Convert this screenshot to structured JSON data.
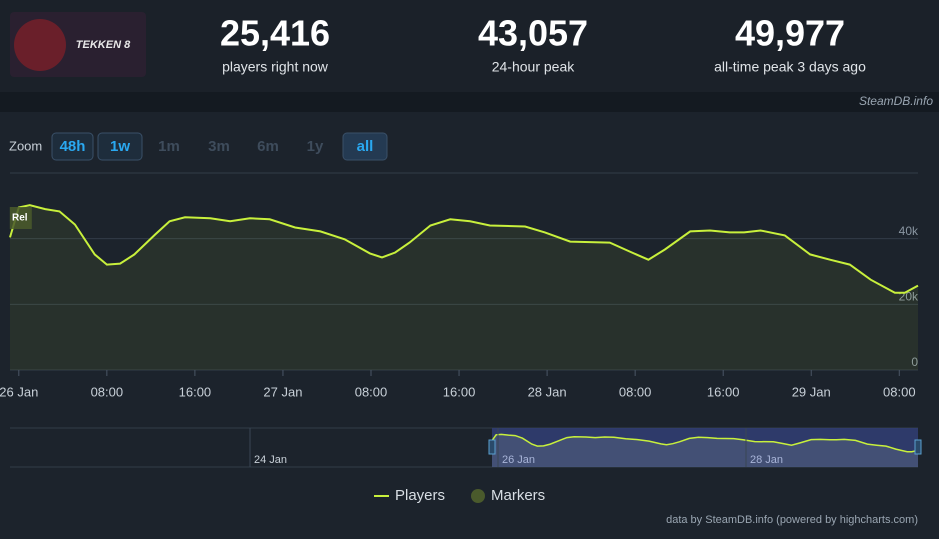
{
  "header": {
    "game": "TEKKEN 8",
    "stats": [
      {
        "value": "25,416",
        "label": "players right now"
      },
      {
        "value": "43,057",
        "label": "24-hour peak"
      },
      {
        "value": "49,977",
        "label": "all-time peak 3 days ago"
      }
    ],
    "site": "SteamDB.info"
  },
  "zoom": {
    "label": "Zoom",
    "buttons": [
      {
        "label": "48h",
        "state": "active"
      },
      {
        "label": "1w",
        "state": "active"
      },
      {
        "label": "1m",
        "state": "disabled"
      },
      {
        "label": "3m",
        "state": "disabled"
      },
      {
        "label": "6m",
        "state": "disabled"
      },
      {
        "label": "1y",
        "state": "disabled"
      },
      {
        "label": "all",
        "state": "selected"
      }
    ]
  },
  "chart_data": {
    "type": "line",
    "x": [
      -0.8,
      0,
      1,
      2.4,
      3.7,
      5.1,
      6.9,
      8,
      9.2,
      10.5,
      12.4,
      13.7,
      15.1,
      17.4,
      19.2,
      21,
      22.8,
      25.1,
      27.4,
      29.6,
      31.9,
      33,
      34.2,
      35.5,
      37.4,
      39.2,
      41,
      42.8,
      46,
      47.8,
      50.1,
      53.7,
      55.5,
      57.2,
      58.7,
      61,
      62.8,
      64.6,
      65.9,
      67.4,
      69.6,
      71.9,
      73.7,
      75.5,
      77.4,
      79.6,
      80.5,
      81.7
    ],
    "series": [
      {
        "name": "Players",
        "color": "#c8f03c",
        "values": [
          40400,
          49500,
          50200,
          49000,
          48300,
          44300,
          35200,
          32100,
          32400,
          35200,
          41300,
          45300,
          46500,
          46200,
          45300,
          46200,
          45900,
          43400,
          42200,
          39800,
          35500,
          34300,
          35800,
          38800,
          44000,
          45900,
          45300,
          44000,
          43700,
          41900,
          39100,
          38800,
          36100,
          33600,
          36700,
          42200,
          42500,
          41900,
          41900,
          42500,
          41000,
          35200,
          33600,
          32100,
          27500,
          23500,
          23500,
          25700
        ]
      }
    ],
    "markers": {
      "name": "Markers",
      "color": "#4a5a2c",
      "points": [
        {
          "x": 0,
          "label": "Rel"
        }
      ]
    },
    "xlim": [
      -0.8,
      81.7
    ],
    "xticks": [
      {
        "value": 0,
        "label": "26 Jan"
      },
      {
        "value": 8,
        "label": "08:00"
      },
      {
        "value": 16,
        "label": "16:00"
      },
      {
        "value": 24,
        "label": "27 Jan"
      },
      {
        "value": 32,
        "label": "08:00"
      },
      {
        "value": 40,
        "label": "16:00"
      },
      {
        "value": 48,
        "label": "28 Jan"
      },
      {
        "value": 56,
        "label": "08:00"
      },
      {
        "value": 64,
        "label": "16:00"
      },
      {
        "value": 72,
        "label": "29 Jan"
      },
      {
        "value": 80,
        "label": "08:00"
      }
    ],
    "ylim": [
      0,
      60000
    ],
    "yticks": [
      0,
      {
        "value": 20000,
        "label": "20k"
      },
      {
        "value": 40000,
        "label": "40k"
      }
    ],
    "grid": true,
    "navigator": {
      "labels": [
        "24 Jan",
        "26 Jan",
        "28 Jan"
      ]
    },
    "legend": "bottom",
    "credits": "data by SteamDB.info (powered by highcharts.com)"
  }
}
